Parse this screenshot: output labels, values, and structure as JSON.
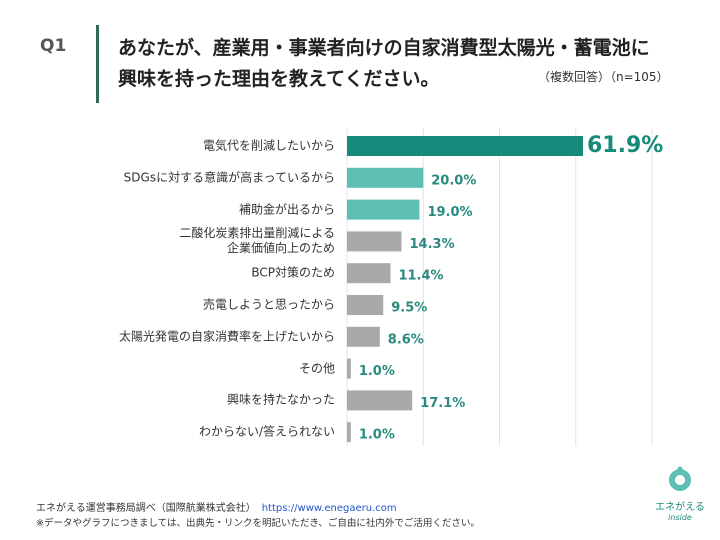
{
  "header": {
    "question": "Q1",
    "title": "あなたが、産業用・事業者向けの自家消費型太陽光・蓄電池に\n興味を持った理由を教えてください。",
    "note": "（複数回答）（n=105）"
  },
  "chart_data": {
    "type": "bar",
    "orientation": "horizontal",
    "categories": [
      "電気代を削減したいから",
      "SDGsに対する意識が高まっているから",
      "補助金が出るから",
      "二酸化炭素排出量削減による\n企業価値向上のため",
      "BCP対策のため",
      "売電しようと思ったから",
      "太陽光発電の自家消費率を上げたいから",
      "その他",
      "興味を持たなかった",
      "わからない/答えられない"
    ],
    "values": [
      61.9,
      20.0,
      19.0,
      14.3,
      11.4,
      9.5,
      8.6,
      1.0,
      17.1,
      1.0
    ],
    "value_labels": [
      "61.9%",
      "20.0%",
      "19.0%",
      "14.3%",
      "11.4%",
      "9.5%",
      "8.6%",
      "1.0%",
      "17.1%",
      "1.0%"
    ],
    "colors": [
      "#168a7b",
      "#5dbfb4",
      "#5dbfb4",
      "#a9a9a9",
      "#a9a9a9",
      "#a9a9a9",
      "#a9a9a9",
      "#a9a9a9",
      "#a9a9a9",
      "#a9a9a9"
    ],
    "xlim": [
      0,
      80
    ],
    "xticks": [
      0,
      20,
      40,
      60,
      80
    ],
    "grid": true
  },
  "footer": {
    "source": "エネがえる運営事務局調べ（国際航業株式会社）",
    "link": "https://www.enegaeru.com",
    "notice": "※データやグラフにつきましては、出典先・リンクを明記いただき、ご自由に社内外でご活用ください。"
  },
  "logo": {
    "name": "エネがえる",
    "sub": "inside"
  }
}
